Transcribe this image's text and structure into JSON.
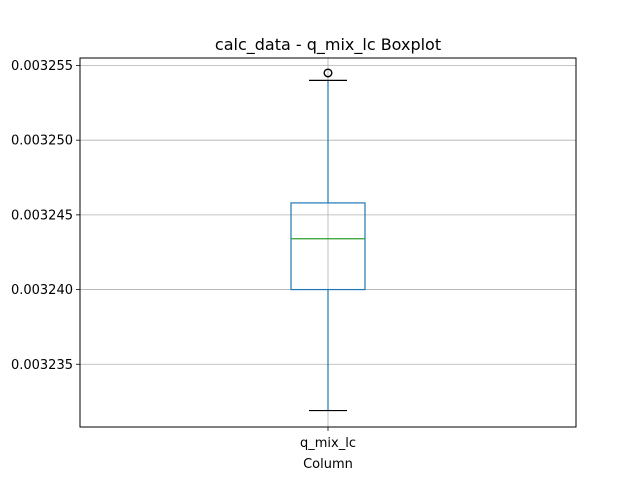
{
  "chart_data": {
    "type": "boxplot",
    "title": "calc_data - q_mix_lc Boxplot",
    "xlabel": "Column",
    "ylabel": "",
    "categories": [
      "q_mix_lc"
    ],
    "boxes": [
      {
        "name": "q_mix_lc",
        "whisker_low": 0.0032319,
        "q1": 0.00324,
        "median": 0.0032434,
        "q3": 0.0032458,
        "whisker_high": 0.003254,
        "outliers": [
          0.0032545
        ]
      }
    ],
    "ylim": [
      0.0032308,
      0.0032555
    ],
    "yticks": [
      0.003235,
      0.00324,
      0.003245,
      0.00325,
      0.003255
    ],
    "ytick_labels": [
      "0.003235",
      "0.003240",
      "0.003245",
      "0.003250",
      "0.003255"
    ],
    "grid": true,
    "colors": {
      "box": "#1f77b4",
      "median": "#2ca02c",
      "grid": "#b0b0b0",
      "outlier_edge": "#000000",
      "whisker_cap": "#000000"
    }
  }
}
